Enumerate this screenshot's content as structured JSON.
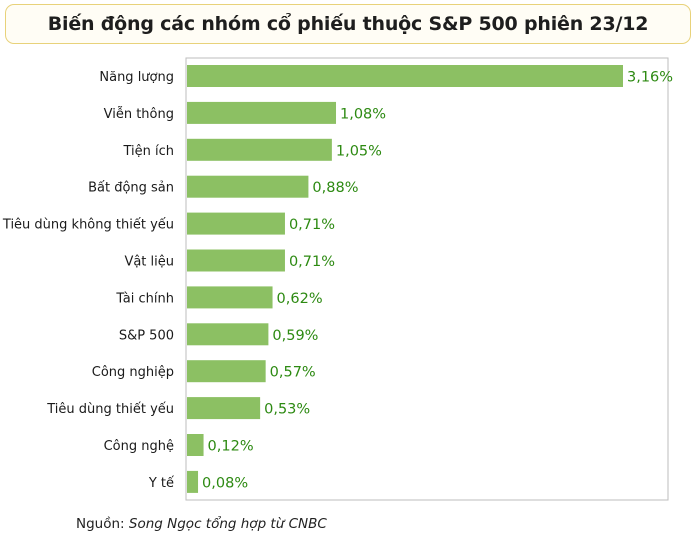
{
  "title": "Biến động các nhóm cổ phiếu thuộc S&P 500 phiên 23/12",
  "source": {
    "prefix": "Nguồn:",
    "name": "Song Ngọc tổng hợp từ CNBC"
  },
  "colors": {
    "bar": "#8cc063",
    "value_label": "#2d8a12",
    "category_label": "#1a1a1a",
    "frame": "#bdbdbd",
    "title_border": "#e8d27a"
  },
  "chart_data": {
    "type": "bar",
    "orientation": "horizontal",
    "categories": [
      "Năng lượng",
      "Viễn thông",
      "Tiện ích",
      "Bất động sản",
      "Tiêu dùng không thiết yếu",
      "Vật liệu",
      "Tài chính",
      "S&P 500",
      "Công nghiệp",
      "Tiêu dùng thiết yếu",
      "Công nghệ",
      "Y tế"
    ],
    "values": [
      3.16,
      1.08,
      1.05,
      0.88,
      0.71,
      0.71,
      0.62,
      0.59,
      0.57,
      0.53,
      0.12,
      0.08
    ],
    "value_labels": [
      "3,16%",
      "1,08%",
      "1,05%",
      "0,88%",
      "0,71%",
      "0,71%",
      "0,62%",
      "0,59%",
      "0,57%",
      "0,53%",
      "0,12%",
      "0,08%"
    ],
    "unit": "%",
    "xlim": [
      0,
      3.16
    ],
    "grid": false
  }
}
